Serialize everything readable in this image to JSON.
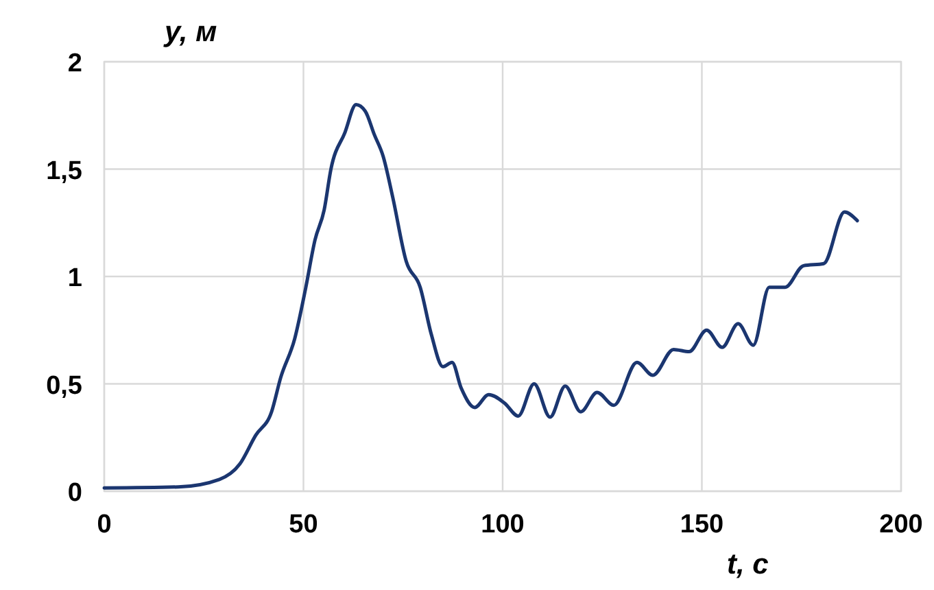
{
  "chart_data": {
    "type": "line",
    "xlabel": "t, с",
    "ylabel": "y, м",
    "xlim": [
      0,
      200
    ],
    "ylim": [
      0,
      2
    ],
    "xticks": [
      0,
      50,
      100,
      150,
      200
    ],
    "yticks": [
      0,
      {
        "value": 0.5,
        "label": "0,5"
      },
      1,
      {
        "value": 1.5,
        "label": "1,5"
      },
      2
    ],
    "grid": true,
    "marker": "none",
    "line_style": "solid",
    "series": [
      {
        "color": "#1b3670",
        "x": [
          0,
          18.6,
          28.9,
          34,
          38,
          42,
          44.3,
          47.8,
          50.6,
          52.9,
          55.2,
          56.9,
          60.4,
          63.2,
          65.5,
          67.8,
          70,
          72.4,
          75.8,
          79.3,
          82.1,
          85,
          87.3,
          89.6,
          93,
          96.5,
          100.5,
          103.9,
          107.9,
          111.9,
          115.7,
          119.6,
          123.7,
          127.9,
          133.7,
          137.7,
          142.9,
          146.8,
          151.2,
          155.1,
          159.1,
          162.9,
          166.9,
          170.9,
          175.5,
          180.6,
          185.8,
          189
        ],
        "values": [
          0.015,
          0.02,
          0.055,
          0.126,
          0.26,
          0.37,
          0.53,
          0.71,
          0.95,
          1.17,
          1.31,
          1.5,
          1.67,
          1.8,
          1.77,
          1.66,
          1.56,
          1.37,
          1.07,
          0.95,
          0.73,
          0.58,
          0.6,
          0.48,
          0.39,
          0.45,
          0.41,
          0.35,
          0.5,
          0.345,
          0.49,
          0.37,
          0.46,
          0.4,
          0.6,
          0.54,
          0.66,
          0.65,
          0.75,
          0.67,
          0.78,
          0.68,
          0.95,
          0.95,
          1.05,
          1.06,
          1.3,
          1.26
        ]
      }
    ]
  }
}
